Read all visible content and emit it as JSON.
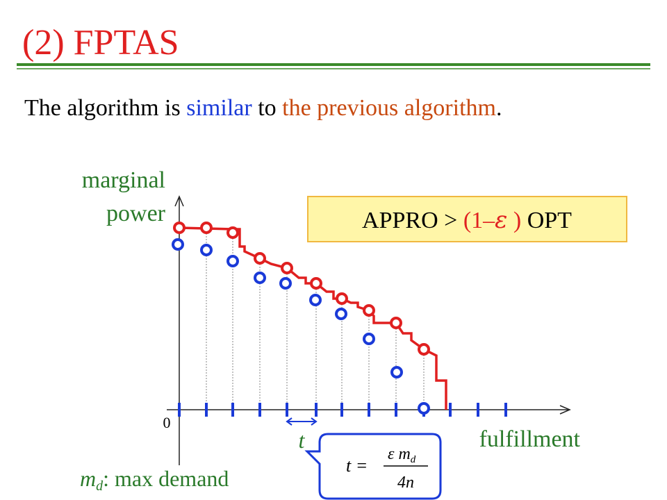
{
  "header": {
    "title": "(2) FPTAS"
  },
  "sentence": {
    "part1": "The algorithm is ",
    "similar": "similar",
    "part2": " to ",
    "previous": "the previous algorithm",
    "end": "."
  },
  "axes": {
    "y_label_line1": "marginal",
    "y_label_line2": "power",
    "origin": "0",
    "x_label": "fulfillment",
    "step": "t"
  },
  "box": {
    "left": "APPRO > ",
    "paren_open": "(1–",
    "epsilon": "ε",
    "paren_close": " )",
    "right": " OPT"
  },
  "note": {
    "m": "m",
    "sub": "d",
    "text": ": max demand"
  },
  "formula": {
    "lhs": "t =",
    "num": "ε m",
    "num_sub": "d",
    "den": "4n"
  }
}
